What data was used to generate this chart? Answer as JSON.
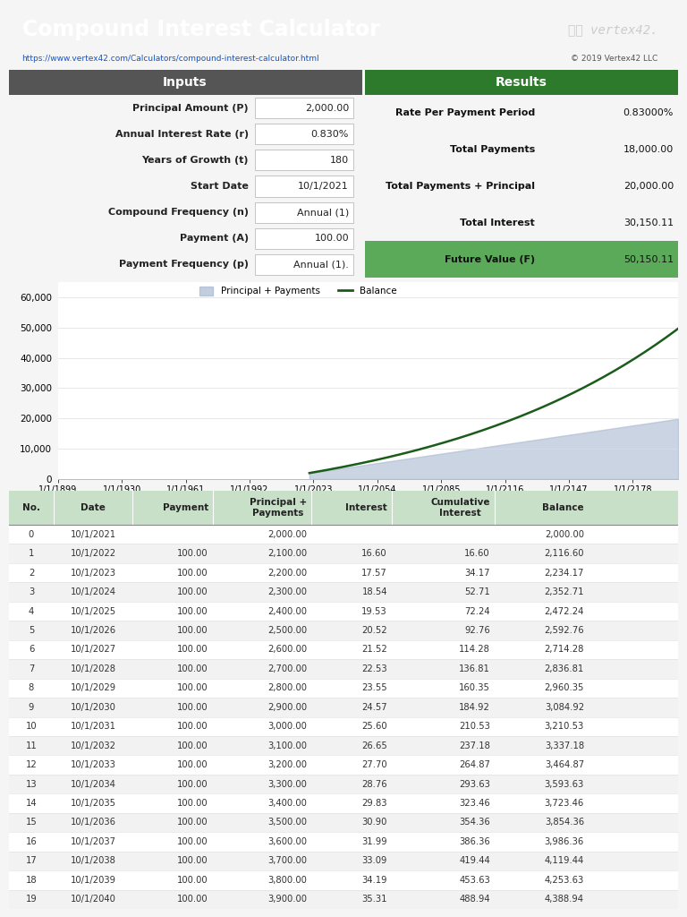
{
  "title": "Compound Interest Calculator",
  "url": "https://www.vertex42.com/Calculators/compound-interest-calculator.html",
  "copyright": "© 2019 Vertex42 LLC",
  "header_bg": "#2d7a2d",
  "header_text_color": "#ffffff",
  "inputs_header_bg": "#555555",
  "results_header_bg": "#2d7a2d",
  "inputs_bg": "#e8e8e8",
  "results_bg": "#c8dfc8",
  "future_value_bg": "#5aaa5a",
  "inputs": [
    [
      "Principal Amount (P)",
      "2,000.00"
    ],
    [
      "Annual Interest Rate (r)",
      "0.830%"
    ],
    [
      "Years of Growth (t)",
      "180"
    ],
    [
      "Start Date",
      "10/1/2021"
    ],
    [
      "Compound Frequency (n)",
      "Annual (1)"
    ],
    [
      "Payment (A)",
      "100.00"
    ],
    [
      "Payment Frequency (p)",
      "Annual (1)."
    ]
  ],
  "results": [
    [
      "Rate Per Payment Period",
      "0.83000%"
    ],
    [
      "Total Payments",
      "18,000.00"
    ],
    [
      "Total Payments + Principal",
      "20,000.00"
    ],
    [
      "Total Interest",
      "30,150.11"
    ],
    [
      "Future Value (F)",
      "50,150.11"
    ]
  ],
  "table_headers": [
    "No.",
    "Date",
    "Payment",
    "Principal +\nPayments",
    "Interest",
    "Cumulative\nInterest",
    "Balance"
  ],
  "table_header_bg": "#c8e0c8",
  "table_alt_bg": "#f2f2f2",
  "table_data": [
    [
      "0",
      "10/1/2021",
      "",
      "2,000.00",
      "",
      "",
      "2,000.00"
    ],
    [
      "1",
      "10/1/2022",
      "100.00",
      "2,100.00",
      "16.60",
      "16.60",
      "2,116.60"
    ],
    [
      "2",
      "10/1/2023",
      "100.00",
      "2,200.00",
      "17.57",
      "34.17",
      "2,234.17"
    ],
    [
      "3",
      "10/1/2024",
      "100.00",
      "2,300.00",
      "18.54",
      "52.71",
      "2,352.71"
    ],
    [
      "4",
      "10/1/2025",
      "100.00",
      "2,400.00",
      "19.53",
      "72.24",
      "2,472.24"
    ],
    [
      "5",
      "10/1/2026",
      "100.00",
      "2,500.00",
      "20.52",
      "92.76",
      "2,592.76"
    ],
    [
      "6",
      "10/1/2027",
      "100.00",
      "2,600.00",
      "21.52",
      "114.28",
      "2,714.28"
    ],
    [
      "7",
      "10/1/2028",
      "100.00",
      "2,700.00",
      "22.53",
      "136.81",
      "2,836.81"
    ],
    [
      "8",
      "10/1/2029",
      "100.00",
      "2,800.00",
      "23.55",
      "160.35",
      "2,960.35"
    ],
    [
      "9",
      "10/1/2030",
      "100.00",
      "2,900.00",
      "24.57",
      "184.92",
      "3,084.92"
    ],
    [
      "10",
      "10/1/2031",
      "100.00",
      "3,000.00",
      "25.60",
      "210.53",
      "3,210.53"
    ],
    [
      "11",
      "10/1/2032",
      "100.00",
      "3,100.00",
      "26.65",
      "237.18",
      "3,337.18"
    ],
    [
      "12",
      "10/1/2033",
      "100.00",
      "3,200.00",
      "27.70",
      "264.87",
      "3,464.87"
    ],
    [
      "13",
      "10/1/2034",
      "100.00",
      "3,300.00",
      "28.76",
      "293.63",
      "3,593.63"
    ],
    [
      "14",
      "10/1/2035",
      "100.00",
      "3,400.00",
      "29.83",
      "323.46",
      "3,723.46"
    ],
    [
      "15",
      "10/1/2036",
      "100.00",
      "3,500.00",
      "30.90",
      "354.36",
      "3,854.36"
    ],
    [
      "16",
      "10/1/2037",
      "100.00",
      "3,600.00",
      "31.99",
      "386.36",
      "3,986.36"
    ],
    [
      "17",
      "10/1/2038",
      "100.00",
      "3,700.00",
      "33.09",
      "419.44",
      "4,119.44"
    ],
    [
      "18",
      "10/1/2039",
      "100.00",
      "3,800.00",
      "34.19",
      "453.63",
      "4,253.63"
    ],
    [
      "19",
      "10/1/2040",
      "100.00",
      "3,900.00",
      "35.31",
      "488.94",
      "4,388.94"
    ]
  ],
  "balance_color": "#1a5c1a",
  "principal_color": "#a8b8d0",
  "chart_x_labels": [
    "1/1/1899",
    "1/1/1930",
    "1/1/1961",
    "1/1/1992",
    "1/1/2023",
    "1/1/2054",
    "1/1/2085",
    "1/1/2116",
    "1/1/2147",
    "1/1/2178"
  ],
  "chart_y_ticks": [
    0,
    10000,
    20000,
    30000,
    40000,
    50000,
    60000
  ]
}
